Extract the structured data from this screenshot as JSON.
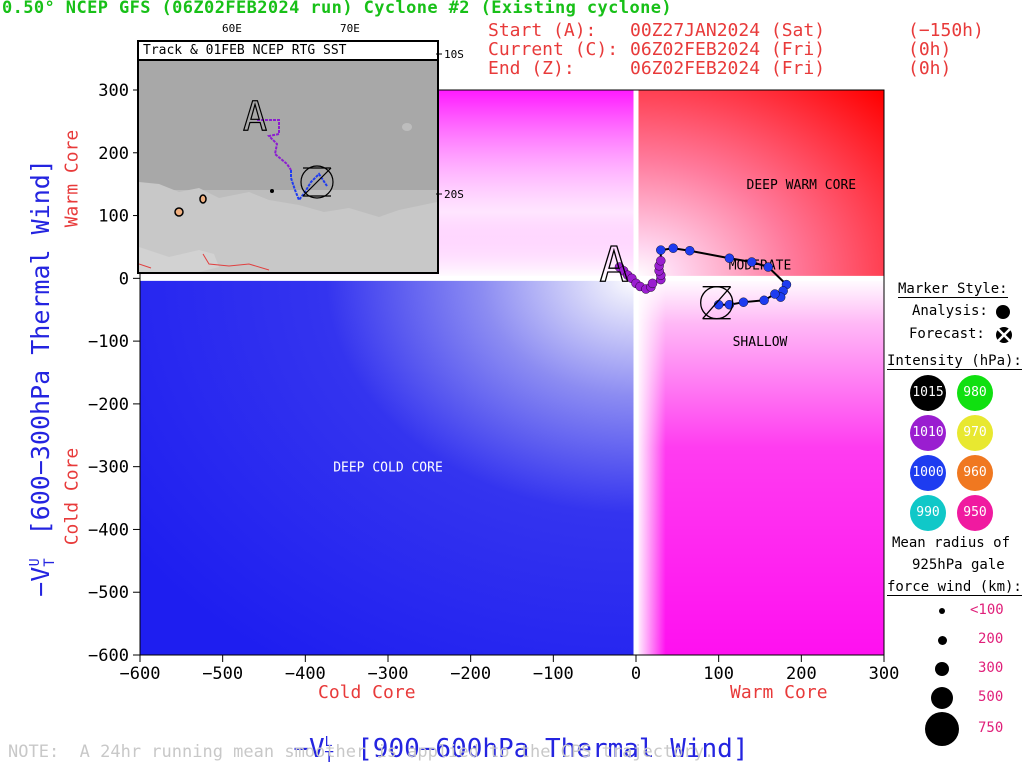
{
  "header": {
    "title": "0.50° NCEP GFS (06Z02FEB2024 run) Cyclone #2 (Existing cyclone)",
    "start_label": "Start (A):",
    "start_value": "00Z27JAN2024 (Sat)",
    "start_offset": "(−150h)",
    "current_label": "Current (C):",
    "current_value": "06Z02FEB2024 (Fri)",
    "current_offset": "(0h)",
    "end_label": "End (Z):",
    "end_value": "06Z02FEB2024 (Fri)",
    "end_offset": "(0h)"
  },
  "inset": {
    "title": "Track & 01FEB NCEP RTG SST",
    "lon_labels": [
      "60E",
      "70E"
    ],
    "lat_labels": [
      "10S",
      "20S"
    ]
  },
  "axes": {
    "ylabel_left": "−VTU [600−300hPa Thermal Wind]",
    "ylabel_prefix": "−V",
    "ylabel_sub": "T",
    "ylabel_sup": "U",
    "ylabel_rest": " [600−300hPa Thermal Wind]",
    "xlabel_prefix": "−V",
    "xlabel_sub": "T",
    "xlabel_sup": "L",
    "xlabel_rest": " [900−600hPa Thermal Wind]",
    "y_warm": "Warm Core",
    "y_cold": "Cold Core",
    "x_cold": "Cold Core",
    "x_warm": "Warm Core"
  },
  "regions": {
    "deep_warm": "DEEP WARM CORE",
    "deep_cold": "DEEP COLD CORE",
    "moderate": "MODERATE",
    "shallow": "SHALLOW"
  },
  "legend": {
    "marker_style": "Marker Style:",
    "analysis": "Analysis:",
    "forecast": "Forecast:",
    "intensity_title": "Intensity (hPa):",
    "intensities": [
      {
        "label": "1015",
        "color": "#000000",
        "text_color": "#ffffff"
      },
      {
        "label": "980",
        "color": "#10e010",
        "text_color": "#ffffff"
      },
      {
        "label": "1010",
        "color": "#9a1ed0",
        "text_color": "#ffffff"
      },
      {
        "label": "970",
        "color": "#e8e830",
        "text_color": "#ffffff"
      },
      {
        "label": "1000",
        "color": "#1e3cf0",
        "text_color": "#ffffff"
      },
      {
        "label": "960",
        "color": "#f07820",
        "text_color": "#ffffff"
      },
      {
        "label": "990",
        "color": "#10c8c8",
        "text_color": "#ffffff"
      },
      {
        "label": "950",
        "color": "#f01aa0",
        "text_color": "#ffffff"
      }
    ],
    "radius_title_1": "Mean radius of",
    "radius_title_2": "925hPa gale",
    "radius_title_3": "force wind (km):",
    "radii": [
      "<100",
      "200",
      "300",
      "500",
      "750"
    ]
  },
  "note": "NOTE:  A 24hr running mean smoother is applied to the CPS trajectory.",
  "chart_data": {
    "type": "scatter",
    "title": "0.50° NCEP GFS (06Z02FEB2024 run) Cyclone #2 (Existing cyclone)",
    "xlabel": "−VTL [900−600hPa Thermal Wind]",
    "ylabel": "−VTU [600−300hPa Thermal Wind]",
    "xlim": [
      -600,
      300
    ],
    "ylim": [
      -600,
      300
    ],
    "x_ticks": [
      -600,
      -500,
      -400,
      -300,
      -200,
      -100,
      0,
      100,
      200,
      300
    ],
    "y_ticks": [
      300,
      200,
      100,
      0,
      -100,
      -200,
      -300,
      -400,
      -500,
      -600
    ],
    "grid": false,
    "legend_position": "right",
    "start_marker": "A",
    "current_marker": "C",
    "end_marker": "Z",
    "series": [
      {
        "name": "1010",
        "color": "#9a1ed0",
        "x": [
          -20,
          -15,
          -10,
          -5,
          0,
          5,
          12,
          18,
          20,
          30,
          30,
          28,
          28,
          30
        ],
        "y": [
          18,
          12,
          5,
          0,
          -8,
          -13,
          -17,
          -14,
          -8,
          -2,
          5,
          12,
          20,
          28
        ]
      },
      {
        "name": "1000",
        "color": "#1e3cf0",
        "x": [
          30,
          45,
          65,
          113,
          140,
          160,
          182,
          178,
          175,
          168,
          155,
          130,
          113,
          100
        ],
        "y": [
          45,
          48,
          44,
          32,
          26,
          18,
          -10,
          -20,
          -30,
          -25,
          -35,
          -38,
          -42,
          -42
        ]
      }
    ]
  }
}
